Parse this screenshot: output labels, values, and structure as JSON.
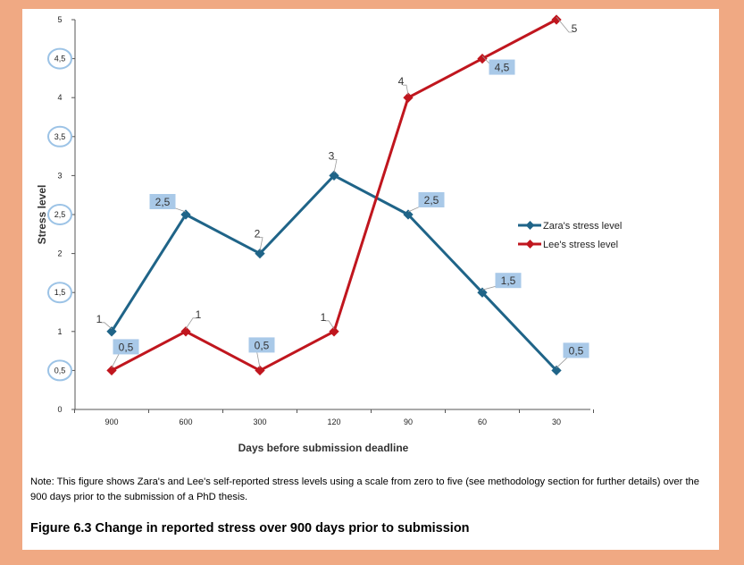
{
  "chart_data": {
    "type": "line",
    "categories": [
      "900",
      "600",
      "300",
      "120",
      "90",
      "60",
      "30"
    ],
    "xlabel": "Days before submission deadline",
    "ylabel": "Stress level",
    "ylim": [
      0,
      5
    ],
    "yticks": [
      "0",
      "0,5",
      "1",
      "1,5",
      "2",
      "2,5",
      "3",
      "3,5",
      "4",
      "4,5",
      "5"
    ],
    "circled_ticks": [
      "0,5",
      "1,5",
      "2,5",
      "3,5",
      "4,5"
    ],
    "series": [
      {
        "name": "Zara's stress level",
        "color": "#1f6488",
        "values": [
          1,
          2.5,
          2,
          3,
          2.5,
          1.5,
          0.5
        ],
        "labels": [
          "1",
          "2,5",
          "2",
          "3",
          "2,5",
          "1,5",
          "0,5"
        ],
        "highlighted": [
          false,
          true,
          false,
          false,
          true,
          true,
          true
        ]
      },
      {
        "name": "Lee's stress level",
        "color": "#c0161e",
        "values": [
          0.5,
          1,
          0.5,
          1,
          4,
          4.5,
          5
        ],
        "labels": [
          "0,5",
          "1",
          "0,5",
          "1",
          "4",
          "4,5",
          "5"
        ],
        "highlighted": [
          true,
          false,
          true,
          false,
          false,
          true,
          false
        ]
      }
    ],
    "legend_position": "right",
    "highlight_color": "#a9c9e8"
  },
  "note": "Note: This figure shows Zara's and Lee's self-reported stress levels using a scale from zero to five (see methodology section for further details) over the 900 days prior to the submission of a PhD thesis.",
  "caption": "Figure 6.3 Change in reported stress over 900 days prior to submission"
}
